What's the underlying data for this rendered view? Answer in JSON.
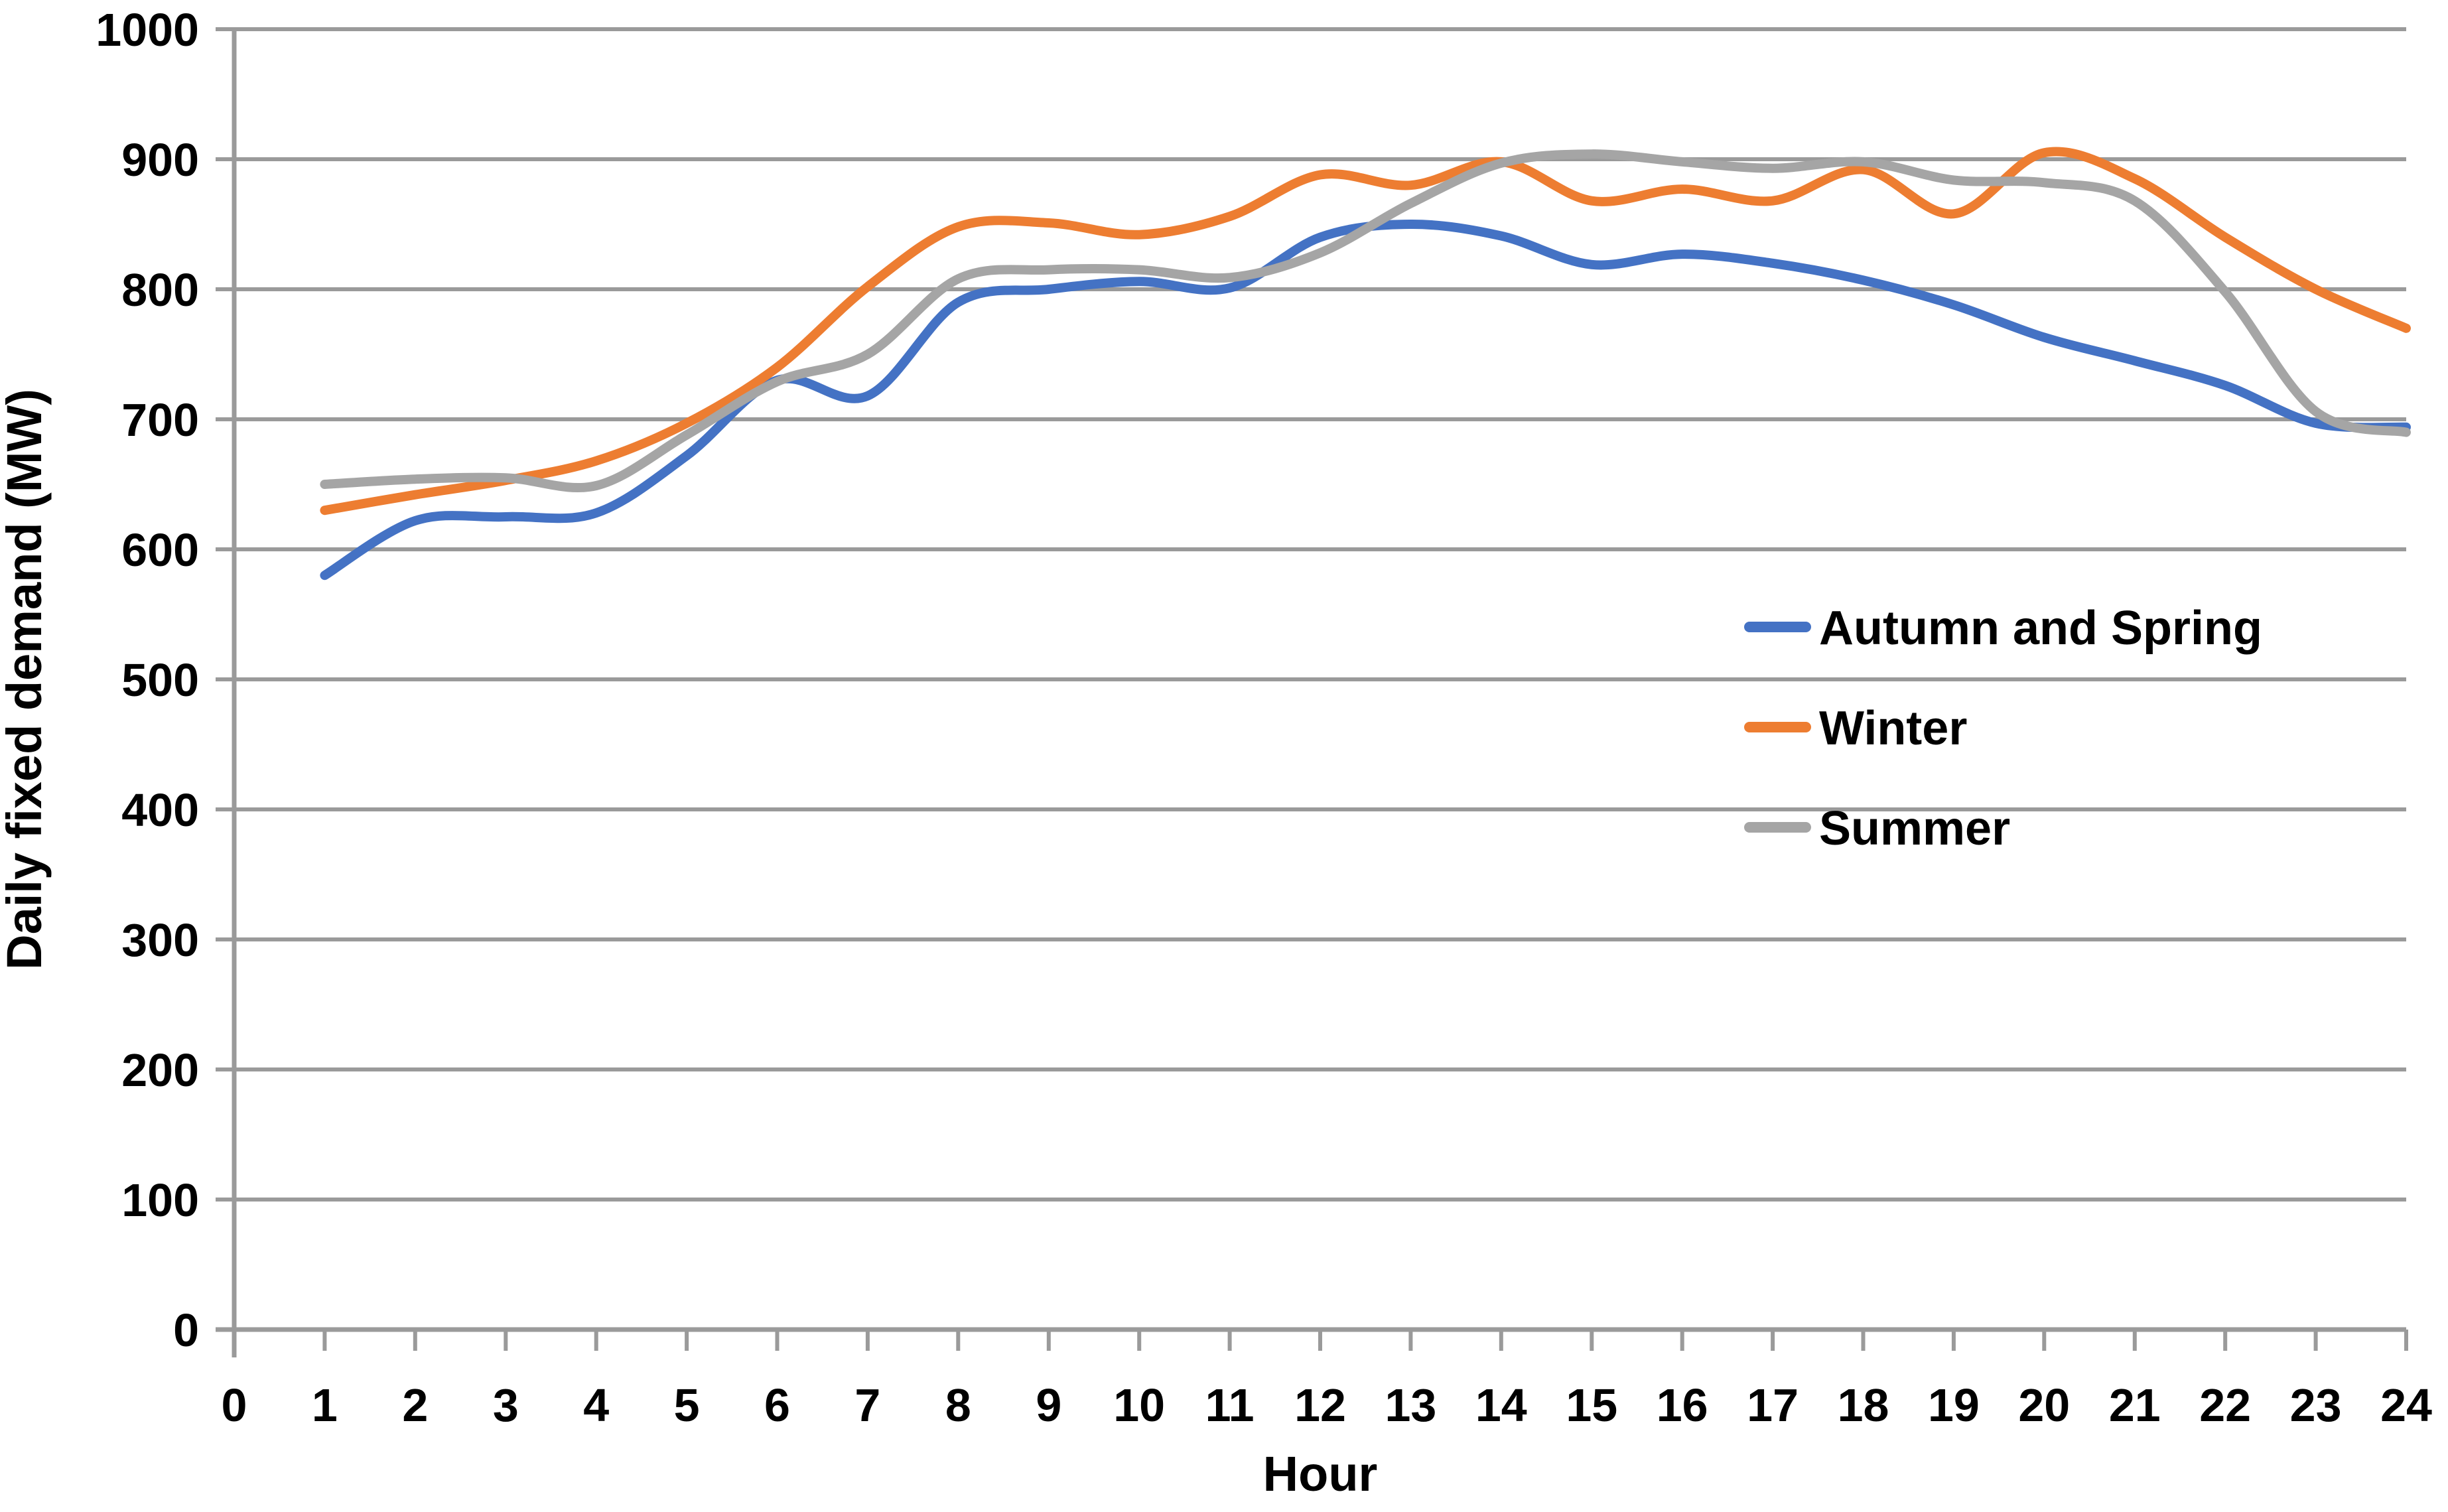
{
  "chart_data": {
    "type": "line",
    "title": "",
    "xlabel": "Hour",
    "ylabel": "Daily fixed demand (MW)",
    "xlim": [
      0,
      24
    ],
    "ylim": [
      0,
      1000
    ],
    "x_tick_labels": [
      "0",
      "1",
      "2",
      "3",
      "4",
      "5",
      "6",
      "7",
      "8",
      "9",
      "10",
      "11",
      "12",
      "13",
      "14",
      "15",
      "16",
      "17",
      "18",
      "19",
      "20",
      "21",
      "22",
      "23",
      "24"
    ],
    "y_tick_labels": [
      "0",
      "100",
      "200",
      "300",
      "400",
      "500",
      "600",
      "700",
      "800",
      "900",
      "1000"
    ],
    "grid": true,
    "legend_position": "middle-right",
    "hours": [
      1,
      2,
      3,
      4,
      5,
      6,
      7,
      8,
      9,
      10,
      11,
      12,
      13,
      14,
      15,
      16,
      17,
      18,
      19,
      20,
      21,
      22,
      23,
      24
    ],
    "series": [
      {
        "name": "Autumn and Spring",
        "color": "#4472C4",
        "values": [
          580,
          622,
          625,
          628,
          672,
          730,
          718,
          790,
          800,
          806,
          801,
          840,
          850,
          841,
          819,
          827,
          820,
          807,
          788,
          763,
          745,
          726,
          697,
          694
        ]
      },
      {
        "name": "Winter",
        "color": "#ED7D31",
        "values": [
          630,
          642,
          653,
          668,
          697,
          740,
          802,
          848,
          851,
          842,
          856,
          888,
          880,
          898,
          868,
          877,
          868,
          892,
          858,
          905,
          885,
          840,
          800,
          770
        ]
      },
      {
        "name": "Summer",
        "color": "#A5A5A5",
        "values": [
          650,
          654,
          655,
          649,
          688,
          729,
          750,
          808,
          815,
          815,
          809,
          828,
          866,
          897,
          904,
          898,
          893,
          898,
          884,
          882,
          868,
          798,
          706,
          690
        ]
      }
    ],
    "grid_color": "#9A9A9A",
    "axis_color": "#9A9A9A",
    "text_color": "#000000",
    "line_width": 14
  }
}
